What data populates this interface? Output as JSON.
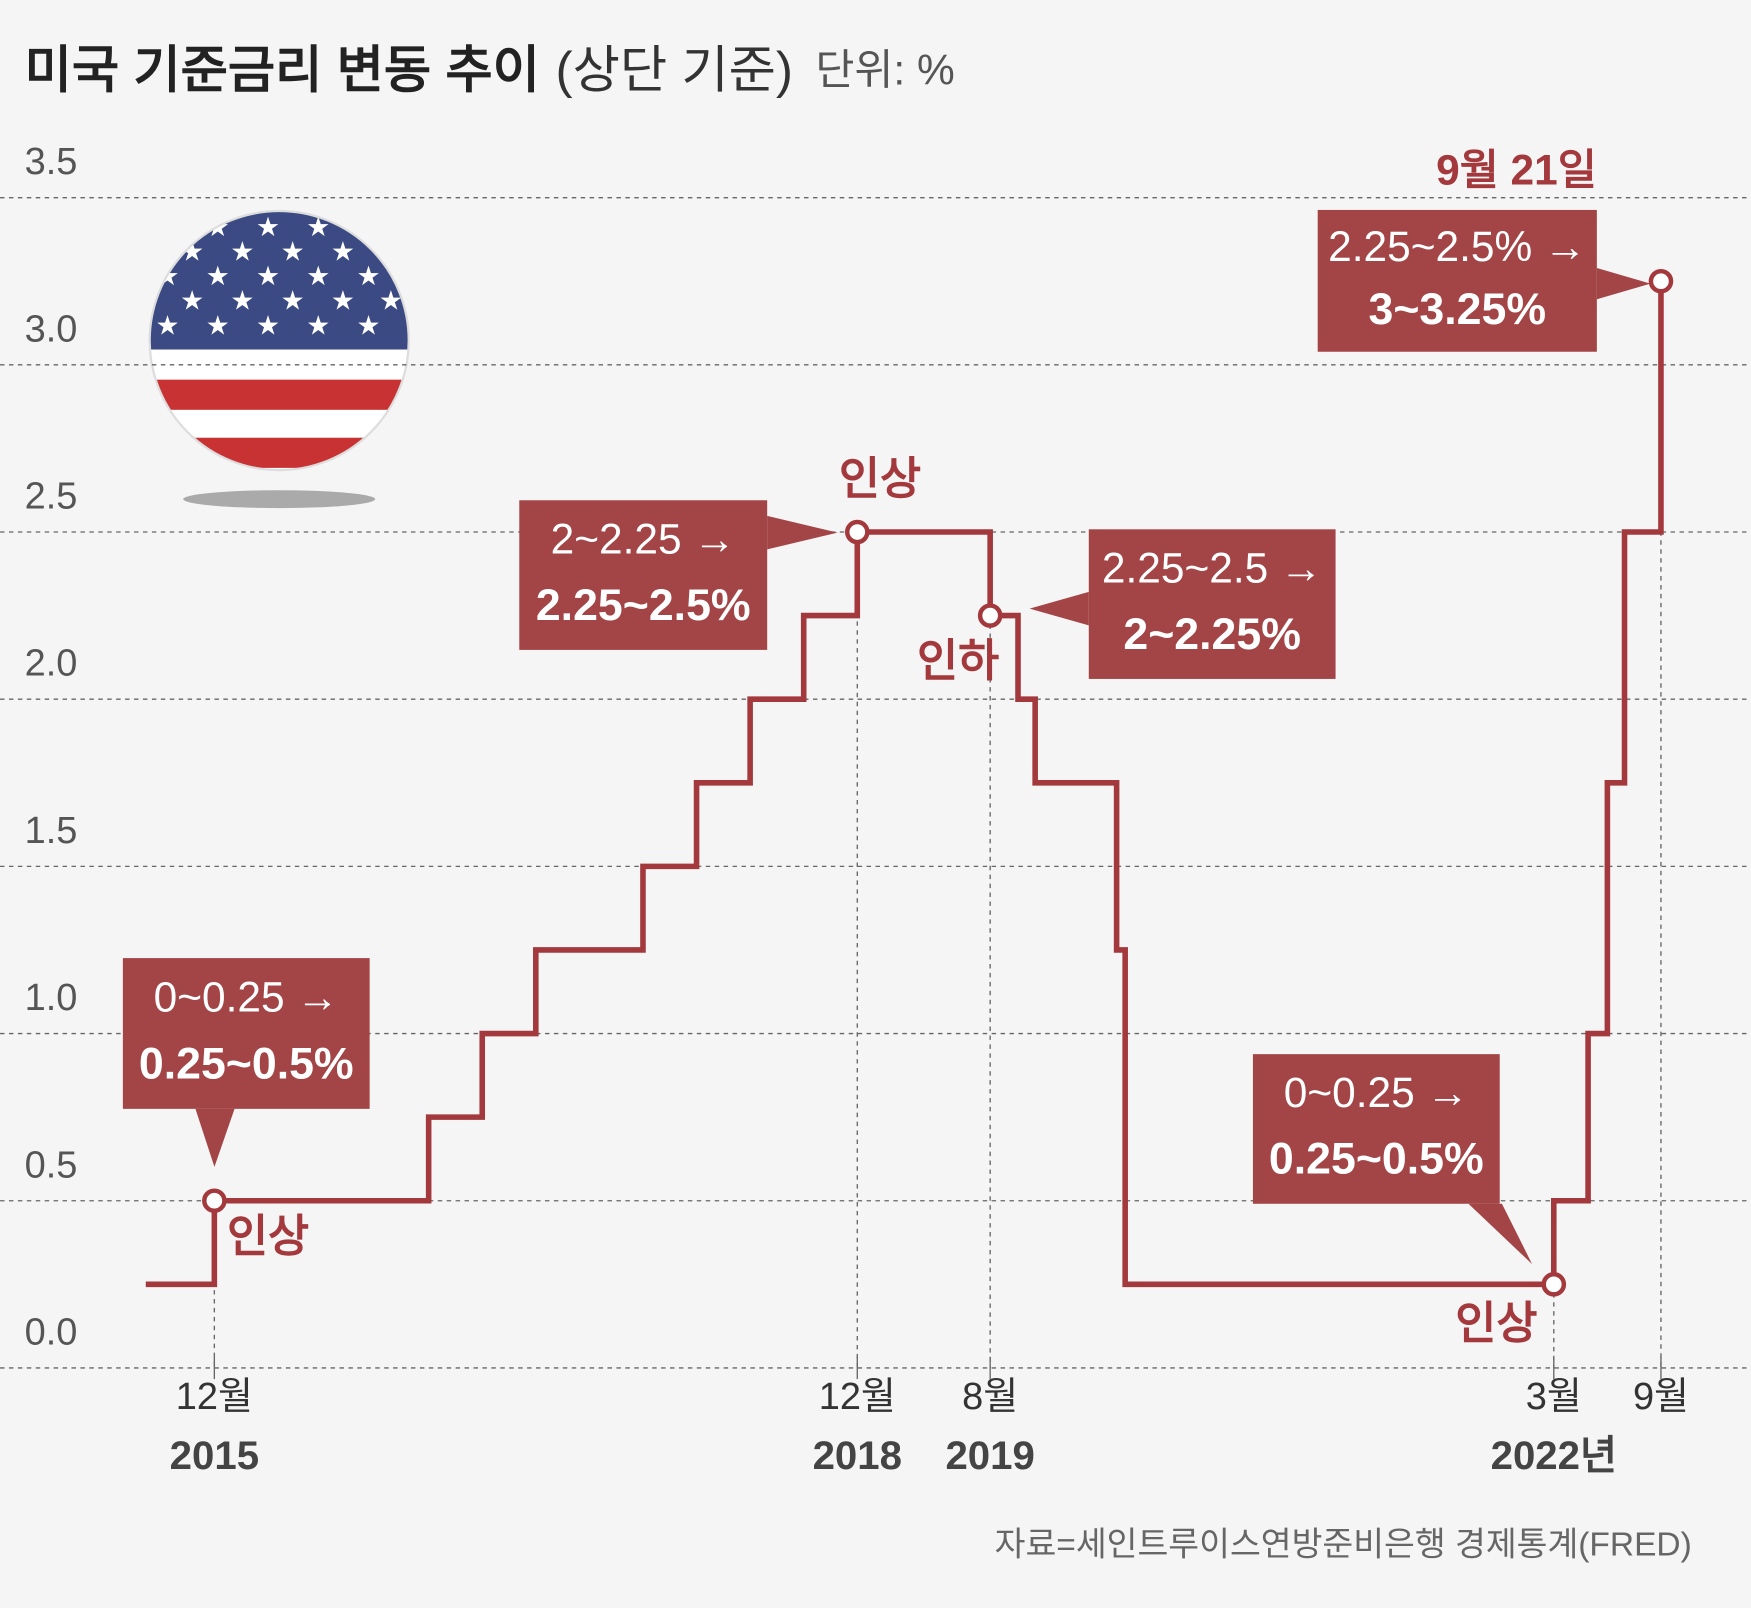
{
  "chart_data": {
    "type": "step-line",
    "title": "미국 기준금리 변동 추이",
    "subtitle": "(상단 기준)",
    "unit": "단위: %",
    "source": "자료=세인트루이스연방준비은행 경제통계(FRED)",
    "x": [
      2015.64,
      2015.96,
      2016.96,
      2017.21,
      2017.46,
      2017.96,
      2018.21,
      2018.46,
      2018.71,
      2018.96,
      2019.58,
      2019.71,
      2019.79,
      2020.17,
      2020.21,
      2022.21,
      2022.37,
      2022.46,
      2022.54,
      2022.71
    ],
    "series": [
      {
        "color": "#a3393c",
        "values": [
          0.25,
          0.5,
          0.75,
          1.0,
          1.25,
          1.5,
          1.75,
          2.0,
          2.25,
          2.5,
          2.25,
          2.0,
          1.75,
          1.25,
          0.25,
          0.5,
          1.0,
          1.75,
          2.5,
          3.25
        ]
      }
    ],
    "xlim": [
      2014.96,
      2023.13
    ],
    "ylim": [
      0,
      3.5
    ],
    "yticks": [
      {
        "value": 0,
        "label": "0.0"
      },
      0.5,
      {
        "value": 1,
        "label": "1.0"
      },
      1.5,
      {
        "value": 2,
        "label": "2.0"
      },
      2.5,
      {
        "value": 3,
        "label": "3.0"
      },
      3.5
    ],
    "xticks": [
      {
        "value": 2015.96,
        "label": "12월"
      },
      {
        "value": 2018.96,
        "label": "12월"
      },
      {
        "value": 2019.58,
        "label": "8월"
      },
      {
        "value": 2022.21,
        "label": "3월"
      },
      {
        "value": 2022.71,
        "label": "9월"
      }
    ],
    "x_year_ticks": [
      {
        "value": 2015.96,
        "label": "2015"
      },
      {
        "value": 2018.96,
        "label": "2018"
      },
      {
        "value": 2019.58,
        "label": "2019"
      },
      {
        "value": 2022.21,
        "label": "2022년"
      }
    ],
    "grid": true,
    "annotations": [
      {
        "label": "인상",
        "lines": [
          "0~0.25 →",
          "0.25~0.5%"
        ]
      },
      {
        "label": "인상",
        "lines": [
          "2~2.25 →",
          "2.25~2.5%"
        ]
      },
      {
        "label": "인하",
        "lines": [
          "2.25~2.5 →",
          "2~2.25%"
        ]
      },
      {
        "label": "인상",
        "lines": [
          "0~0.25 →",
          "0.25~0.5%"
        ]
      },
      {
        "label": "9월 21일",
        "lines": [
          "2.25~2.5% →",
          "3~3.25%"
        ]
      }
    ]
  }
}
